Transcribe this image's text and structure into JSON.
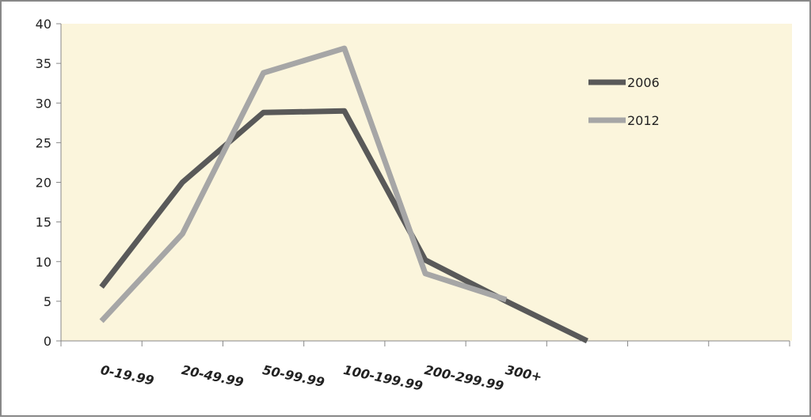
{
  "chart_data": {
    "type": "line",
    "categories": [
      "0-19.99",
      "20-49.99",
      "50-99.99",
      "100-199.99",
      "200-299.99",
      "300+",
      null,
      null,
      null
    ],
    "series": [
      {
        "name": "2006",
        "color": "#595959",
        "values": [
          6.8,
          20,
          28.8,
          29,
          10.2,
          5,
          0,
          null,
          null
        ]
      },
      {
        "name": "2012",
        "color": "#a6a6a6",
        "values": [
          2.5,
          13.5,
          33.8,
          36.9,
          8.5,
          5.2,
          null,
          null,
          null
        ]
      }
    ],
    "ylim": [
      0,
      40
    ],
    "yticks": [
      0,
      5,
      10,
      15,
      20,
      25,
      30,
      35,
      40
    ],
    "legend": "right",
    "background": "#fbf5dc"
  }
}
